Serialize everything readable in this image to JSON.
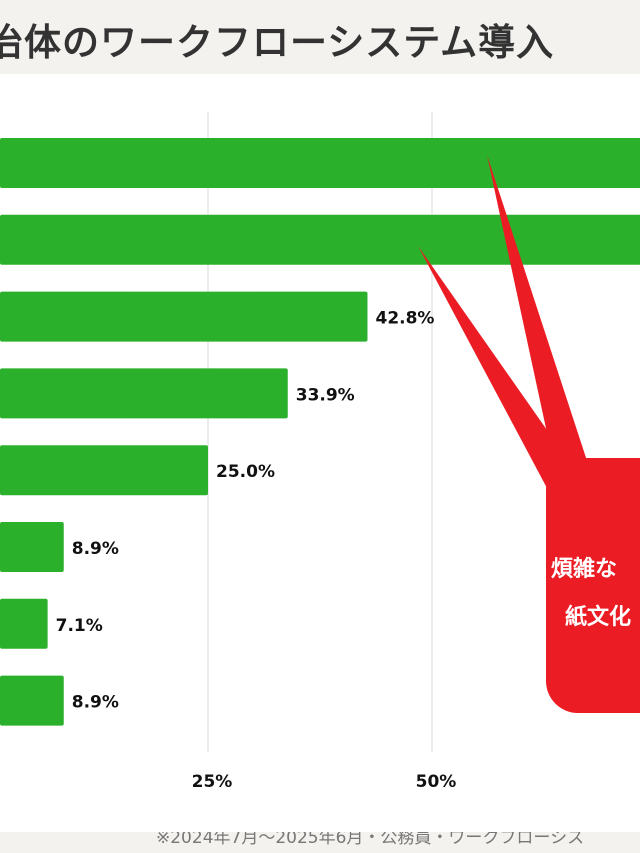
{
  "header": {
    "title": "治体のワークフローシステム導入"
  },
  "footer": {
    "note": "※2024年7月〜2025年6月・公務員・ワークフローシス"
  },
  "callout": {
    "lines": [
      "煩雑な",
      "紙文化"
    ],
    "color": "#ec1c24"
  },
  "chart_data": {
    "type": "bar",
    "orientation": "horizontal",
    "values": [
      80,
      76,
      42.8,
      33.9,
      25.0,
      8.9,
      7.1,
      8.9
    ],
    "labels": [
      "",
      "",
      "42.8%",
      "33.9%",
      "25.0%",
      "8.9%",
      "7.1%",
      "8.9%"
    ],
    "xticks": [
      {
        "value": 25,
        "label": "25%"
      },
      {
        "value": 50,
        "label": "50%"
      }
    ],
    "xlim": [
      0,
      100
    ],
    "grid": true,
    "bar_color": "#2bb02b"
  }
}
